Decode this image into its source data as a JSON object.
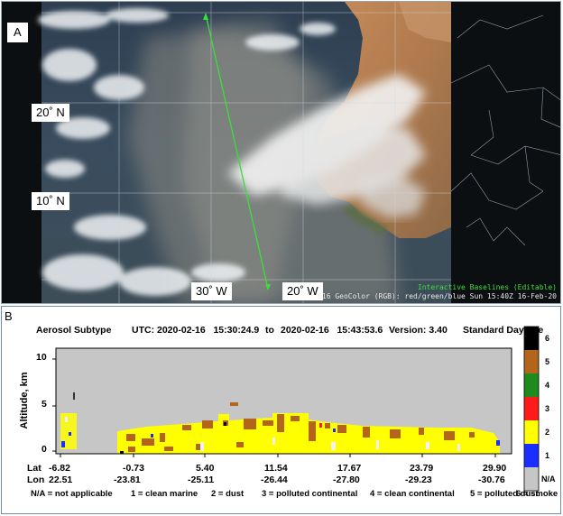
{
  "panel_a": {
    "letter": "A",
    "lat_labels": [
      "20˚ N",
      "10˚ N"
    ],
    "lon_labels": [
      "30˚ W",
      "20˚ W"
    ],
    "baseline_note": "Interactive Baselines (Editable)",
    "credit": "G16 GeoColor (RGB): red/green/blue Sun 15:40Z 16-Feb-20",
    "colors": {
      "ocean": "#34475a",
      "dust": "#8a8a82",
      "land": "#b07a4e",
      "cloud": "#f0f0f0",
      "night": "#0b0f12",
      "track": "#38e038"
    }
  },
  "panel_b": {
    "letter": "B",
    "product": "Aerosol Subtype",
    "utc_label": "UTC:",
    "start_time": "2020-02-16   15:30:24.9",
    "to_word": "to",
    "end_time": "2020-02-16   15:43:53.6",
    "version": "Version: 3.40",
    "mode": "Standard Daytime",
    "ylabel": "Altitude, km",
    "y_ticks": [
      "10",
      "5",
      "0"
    ],
    "lat_label": "Lat",
    "lon_label": "Lon",
    "lat_values": [
      "-6.82",
      "-0.73",
      "5.40",
      "11.54",
      "17.67",
      "23.79",
      "29.90"
    ],
    "lon_values": [
      "22.51",
      "-23.81",
      "-25.11",
      "-26.44",
      "-27.80",
      "-29.23",
      "-30.76"
    ],
    "legend": [
      {
        "label": "6",
        "color": "#000000"
      },
      {
        "label": "5",
        "color": "#b3661a"
      },
      {
        "label": "4",
        "color": "#1f8a1f"
      },
      {
        "label": "3",
        "color": "#ff1a1a"
      },
      {
        "label": "2",
        "color": "#ffff00"
      },
      {
        "label": "1",
        "color": "#1a2eff"
      },
      {
        "label": "N/A",
        "color": "#c6c6c6"
      }
    ],
    "categories": [
      "N/A = not applicable",
      "1 = clean marine",
      "2 = dust",
      "3 = polluted continental",
      "4 = clean continental",
      "5 = polluted dust",
      "6 = smoke"
    ]
  }
}
